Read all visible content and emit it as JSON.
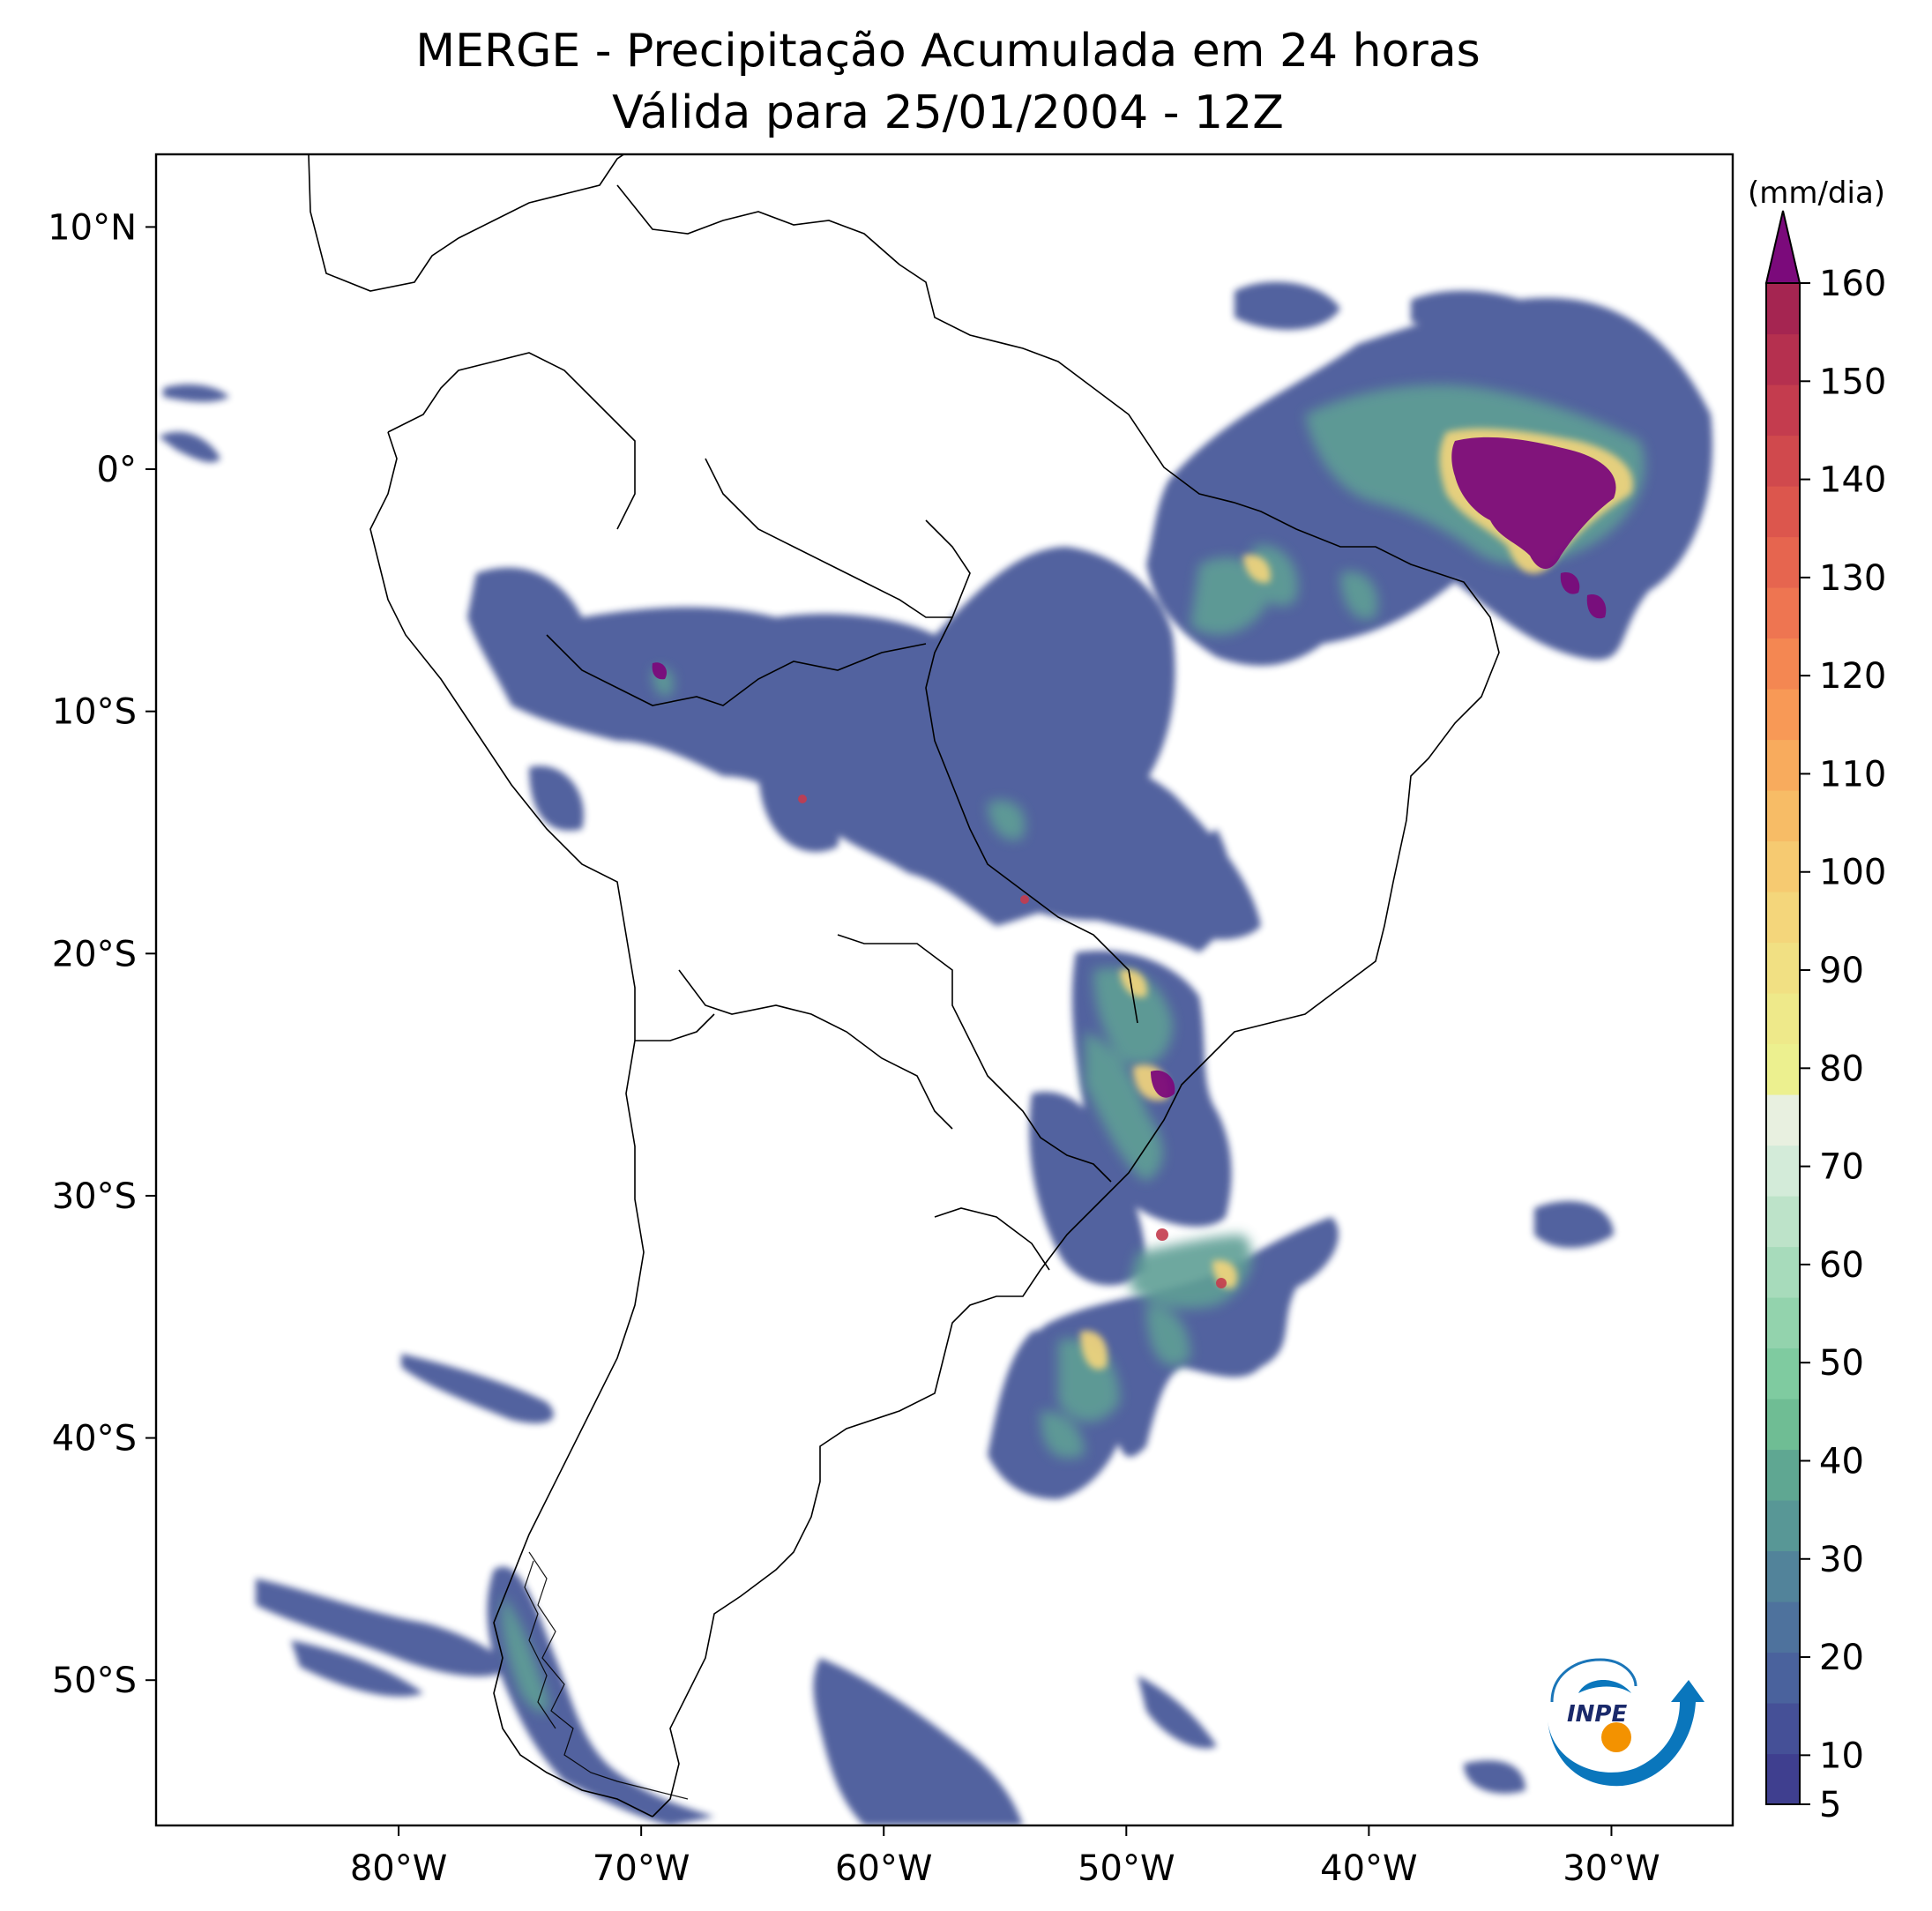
{
  "title": "MERGE - Precipitação Acumulada em 24 horas",
  "subtitle": "Válida para 25/01/2004 - 12Z",
  "map": {
    "lon_range": [
      -90,
      -25
    ],
    "lat_range": [
      -56,
      13
    ],
    "lon_ticks": [
      {
        "value": -80,
        "label": "80°W"
      },
      {
        "value": -70,
        "label": "70°W"
      },
      {
        "value": -60,
        "label": "60°W"
      },
      {
        "value": -50,
        "label": "50°W"
      },
      {
        "value": -40,
        "label": "40°W"
      },
      {
        "value": -30,
        "label": "30°W"
      }
    ],
    "lat_ticks": [
      {
        "value": 10,
        "label": "10°N"
      },
      {
        "value": 0,
        "label": "0°"
      },
      {
        "value": -10,
        "label": "10°S"
      },
      {
        "value": -20,
        "label": "20°S"
      },
      {
        "value": -30,
        "label": "30°S"
      },
      {
        "value": -40,
        "label": "40°S"
      },
      {
        "value": -50,
        "label": "50°S"
      }
    ]
  },
  "colorbar": {
    "unit_label": "(mm/dia)",
    "min": 5,
    "max": 160,
    "extend": "max",
    "ticks": [
      {
        "value": 5,
        "label": "5"
      },
      {
        "value": 10,
        "label": "10"
      },
      {
        "value": 20,
        "label": "20"
      },
      {
        "value": 30,
        "label": "30"
      },
      {
        "value": 40,
        "label": "40"
      },
      {
        "value": 50,
        "label": "50"
      },
      {
        "value": 60,
        "label": "60"
      },
      {
        "value": 70,
        "label": "70"
      },
      {
        "value": 80,
        "label": "80"
      },
      {
        "value": 90,
        "label": "90"
      },
      {
        "value": 100,
        "label": "100"
      },
      {
        "value": 110,
        "label": "110"
      },
      {
        "value": 120,
        "label": "120"
      },
      {
        "value": 130,
        "label": "130"
      },
      {
        "value": 140,
        "label": "140"
      },
      {
        "value": 150,
        "label": "150"
      },
      {
        "value": 160,
        "label": "160"
      }
    ],
    "colors": [
      "#3f3f8f",
      "#455097",
      "#4a629d",
      "#4e729d",
      "#52839a",
      "#589796",
      "#5fa792",
      "#6fbd94",
      "#7fcba0",
      "#93d3ad",
      "#a7dbbb",
      "#bde3c9",
      "#d3ebd9",
      "#e8f0e0",
      "#ecf08f",
      "#eee98a",
      "#f1e083",
      "#f4d67b",
      "#f6ca71",
      "#f7bc66",
      "#f8ab5d",
      "#f89956",
      "#f48752",
      "#ee7551",
      "#e6654f",
      "#dc564d",
      "#d0494d",
      "#c43c4e",
      "#b5304f",
      "#a52551"
    ],
    "extend_color": "#7b0a7b"
  },
  "logo": {
    "text": "INPE"
  }
}
